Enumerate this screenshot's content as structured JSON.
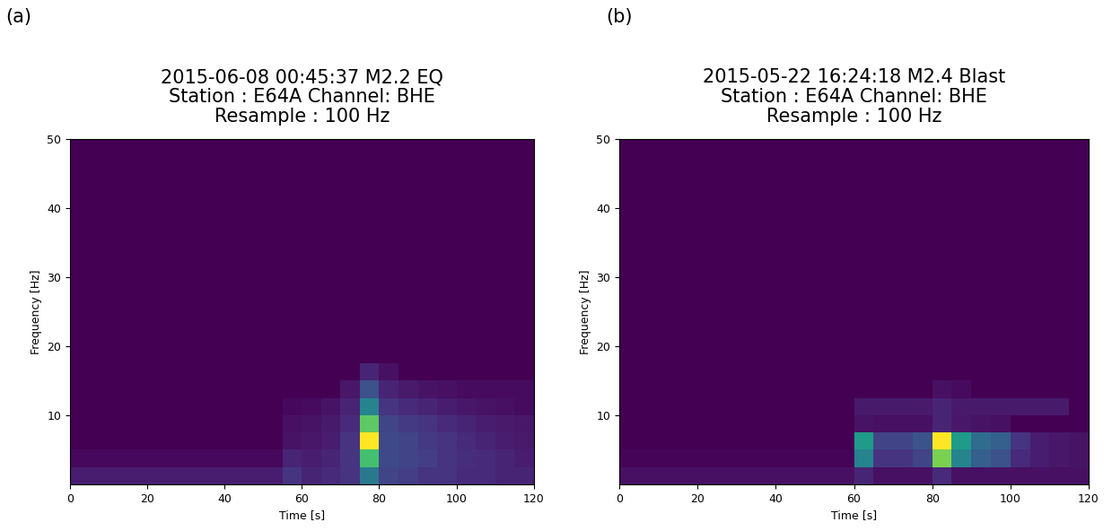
{
  "chart_data": [
    {
      "type": "heatmap",
      "label": "(a)",
      "title": "2015-06-08 00:45:37 M2.2 EQ\nStation : E64A Channel: BHE\nResample : 100 Hz",
      "x_label": "Time [s]",
      "y_label": "Frequency [Hz]",
      "xlim": [
        0,
        120
      ],
      "xticks": [
        0,
        20,
        40,
        60,
        80,
        100,
        120
      ],
      "ylim": [
        0,
        50
      ],
      "yticks": [
        10,
        20,
        30,
        40,
        50
      ],
      "color": "viridis",
      "color_range": [
        0,
        1
      ],
      "x_edges": [
        0,
        5,
        10,
        15,
        20,
        25,
        30,
        35,
        40,
        45,
        50,
        55,
        60,
        65,
        70,
        75,
        80,
        85,
        90,
        95,
        100,
        105,
        110,
        115,
        120
      ],
      "y_edges": [
        0,
        2.5,
        5,
        7.5,
        10,
        12.5,
        15,
        17.5,
        20,
        22.5,
        25,
        27.5,
        30,
        32.5,
        35,
        37.5,
        40,
        42.5,
        45,
        47.5,
        50
      ],
      "cells": [
        [
          0.08,
          0.08,
          0.08,
          0.08,
          0.08,
          0.08,
          0.08,
          0.08,
          0.08,
          0.08,
          0.08,
          0.15,
          0.1,
          0.12,
          0.15,
          0.4,
          0.2,
          0.18,
          0.15,
          0.15,
          0.12,
          0.12,
          0.1,
          0.1
        ],
        [
          0.02,
          0.02,
          0.02,
          0.02,
          0.02,
          0.02,
          0.02,
          0.02,
          0.02,
          0.02,
          0.02,
          0.1,
          0.08,
          0.1,
          0.15,
          0.7,
          0.22,
          0.2,
          0.18,
          0.15,
          0.13,
          0.12,
          0.1,
          0.08
        ],
        [
          0,
          0,
          0,
          0,
          0,
          0,
          0,
          0,
          0,
          0,
          0,
          0.05,
          0.06,
          0.08,
          0.15,
          1.0,
          0.22,
          0.2,
          0.17,
          0.15,
          0.12,
          0.1,
          0.08,
          0.07
        ],
        [
          0,
          0,
          0,
          0,
          0,
          0,
          0,
          0,
          0,
          0,
          0,
          0.04,
          0.05,
          0.07,
          0.12,
          0.75,
          0.2,
          0.17,
          0.15,
          0.12,
          0.1,
          0.08,
          0.07,
          0.06
        ],
        [
          0,
          0,
          0,
          0,
          0,
          0,
          0,
          0,
          0,
          0,
          0,
          0.02,
          0.03,
          0.05,
          0.1,
          0.45,
          0.15,
          0.12,
          0.1,
          0.08,
          0.06,
          0.05,
          0.04,
          0.03
        ],
        [
          0,
          0,
          0,
          0,
          0,
          0,
          0,
          0,
          0,
          0,
          0,
          0,
          0,
          0,
          0.06,
          0.25,
          0.1,
          0.07,
          0.05,
          0.04,
          0.03,
          0.03,
          0.03,
          0.03
        ],
        [
          0,
          0,
          0,
          0,
          0,
          0,
          0,
          0,
          0,
          0,
          0,
          0,
          0,
          0,
          0,
          0.1,
          0.04,
          0,
          0,
          0,
          0,
          0,
          0,
          0
        ],
        [
          0,
          0,
          0,
          0,
          0,
          0,
          0,
          0,
          0,
          0,
          0,
          0,
          0,
          0,
          0,
          0,
          0,
          0,
          0,
          0,
          0,
          0,
          0,
          0
        ],
        [
          0,
          0,
          0,
          0,
          0,
          0,
          0,
          0,
          0,
          0,
          0,
          0,
          0,
          0,
          0,
          0,
          0,
          0,
          0,
          0,
          0,
          0,
          0,
          0
        ],
        [
          0,
          0,
          0,
          0,
          0,
          0,
          0,
          0,
          0,
          0,
          0,
          0,
          0,
          0,
          0,
          0,
          0,
          0,
          0,
          0,
          0,
          0,
          0,
          0
        ],
        [
          0,
          0,
          0,
          0,
          0,
          0,
          0,
          0,
          0,
          0,
          0,
          0,
          0,
          0,
          0,
          0,
          0,
          0,
          0,
          0,
          0,
          0,
          0,
          0
        ],
        [
          0,
          0,
          0,
          0,
          0,
          0,
          0,
          0,
          0,
          0,
          0,
          0,
          0,
          0,
          0,
          0,
          0,
          0,
          0,
          0,
          0,
          0,
          0,
          0
        ],
        [
          0,
          0,
          0,
          0,
          0,
          0,
          0,
          0,
          0,
          0,
          0,
          0,
          0,
          0,
          0,
          0,
          0,
          0,
          0,
          0,
          0,
          0,
          0,
          0
        ],
        [
          0,
          0,
          0,
          0,
          0,
          0,
          0,
          0,
          0,
          0,
          0,
          0,
          0,
          0,
          0,
          0,
          0,
          0,
          0,
          0,
          0,
          0,
          0,
          0
        ],
        [
          0,
          0,
          0,
          0,
          0,
          0,
          0,
          0,
          0,
          0,
          0,
          0,
          0,
          0,
          0,
          0,
          0,
          0,
          0,
          0,
          0,
          0,
          0,
          0
        ],
        [
          0,
          0,
          0,
          0,
          0,
          0,
          0,
          0,
          0,
          0,
          0,
          0,
          0,
          0,
          0,
          0,
          0,
          0,
          0,
          0,
          0,
          0,
          0,
          0
        ],
        [
          0,
          0,
          0,
          0,
          0,
          0,
          0,
          0,
          0,
          0,
          0,
          0,
          0,
          0,
          0,
          0,
          0,
          0,
          0,
          0,
          0,
          0,
          0,
          0
        ],
        [
          0,
          0,
          0,
          0,
          0,
          0,
          0,
          0,
          0,
          0,
          0,
          0,
          0,
          0,
          0,
          0,
          0,
          0,
          0,
          0,
          0,
          0,
          0,
          0
        ],
        [
          0,
          0,
          0,
          0,
          0,
          0,
          0,
          0,
          0,
          0,
          0,
          0,
          0,
          0,
          0,
          0,
          0,
          0,
          0,
          0,
          0,
          0,
          0,
          0
        ],
        [
          0,
          0,
          0,
          0,
          0,
          0,
          0,
          0,
          0,
          0,
          0,
          0,
          0,
          0,
          0,
          0,
          0,
          0,
          0,
          0,
          0,
          0,
          0,
          0
        ]
      ]
    },
    {
      "type": "heatmap",
      "label": "(b)",
      "title": "2015-05-22 16:24:18 M2.4 Blast\nStation : E64A Channel: BHE\nResample : 100 Hz",
      "x_label": "Time [s]",
      "y_label": "Frequency [Hz]",
      "xlim": [
        0,
        120
      ],
      "xticks": [
        0,
        20,
        40,
        60,
        80,
        100,
        120
      ],
      "ylim": [
        0,
        50
      ],
      "yticks": [
        10,
        20,
        30,
        40,
        50
      ],
      "color": "viridis",
      "color_range": [
        0,
        1
      ],
      "x_edges": [
        0,
        5,
        10,
        15,
        20,
        25,
        30,
        35,
        40,
        45,
        50,
        55,
        60,
        65,
        70,
        75,
        80,
        85,
        90,
        95,
        100,
        105,
        110,
        115,
        120
      ],
      "y_edges": [
        0,
        2.5,
        5,
        7.5,
        10,
        12.5,
        15,
        17.5,
        20,
        22.5,
        25,
        27.5,
        30,
        32.5,
        35,
        37.5,
        40,
        42.5,
        45,
        47.5,
        50
      ],
      "cells": [
        [
          0.04,
          0.04,
          0.04,
          0.04,
          0.04,
          0.04,
          0.04,
          0.04,
          0.04,
          0.04,
          0.04,
          0.04,
          0.1,
          0.04,
          0.04,
          0.04,
          0.12,
          0.04,
          0.04,
          0.04,
          0.04,
          0.04,
          0.04,
          0.04
        ],
        [
          0.01,
          0.01,
          0.01,
          0.01,
          0.01,
          0.01,
          0.01,
          0.01,
          0.01,
          0.01,
          0.01,
          0.01,
          0.45,
          0.15,
          0.15,
          0.2,
          0.8,
          0.45,
          0.3,
          0.25,
          0.12,
          0.08,
          0.06,
          0.05
        ],
        [
          0,
          0,
          0,
          0,
          0,
          0,
          0,
          0,
          0,
          0,
          0,
          0,
          0.55,
          0.2,
          0.2,
          0.25,
          1.0,
          0.55,
          0.35,
          0.3,
          0.15,
          0.08,
          0.06,
          0.05
        ],
        [
          0,
          0,
          0,
          0,
          0,
          0,
          0,
          0,
          0,
          0,
          0,
          0,
          0.05,
          0.04,
          0.04,
          0.04,
          0.1,
          0.06,
          0.05,
          0.04,
          0,
          0,
          0,
          0
        ],
        [
          0,
          0,
          0,
          0,
          0,
          0,
          0,
          0,
          0,
          0,
          0,
          0,
          0.07,
          0.07,
          0.07,
          0.07,
          0.1,
          0.07,
          0.07,
          0.07,
          0.07,
          0.07,
          0.07,
          0
        ],
        [
          0,
          0,
          0,
          0,
          0,
          0,
          0,
          0,
          0,
          0,
          0,
          0,
          0,
          0,
          0,
          0,
          0.04,
          0.03,
          0,
          0,
          0,
          0,
          0,
          0
        ],
        [
          0,
          0,
          0,
          0,
          0,
          0,
          0,
          0,
          0,
          0,
          0,
          0,
          0,
          0,
          0,
          0,
          0,
          0,
          0,
          0,
          0,
          0,
          0,
          0
        ],
        [
          0,
          0,
          0,
          0,
          0,
          0,
          0,
          0,
          0,
          0,
          0,
          0,
          0,
          0,
          0,
          0,
          0,
          0,
          0,
          0,
          0,
          0,
          0,
          0
        ],
        [
          0,
          0,
          0,
          0,
          0,
          0,
          0,
          0,
          0,
          0,
          0,
          0,
          0,
          0,
          0,
          0,
          0,
          0,
          0,
          0,
          0,
          0,
          0,
          0
        ],
        [
          0,
          0,
          0,
          0,
          0,
          0,
          0,
          0,
          0,
          0,
          0,
          0,
          0,
          0,
          0,
          0,
          0,
          0,
          0,
          0,
          0,
          0,
          0,
          0
        ],
        [
          0,
          0,
          0,
          0,
          0,
          0,
          0,
          0,
          0,
          0,
          0,
          0,
          0,
          0,
          0,
          0,
          0,
          0,
          0,
          0,
          0,
          0,
          0,
          0
        ],
        [
          0,
          0,
          0,
          0,
          0,
          0,
          0,
          0,
          0,
          0,
          0,
          0,
          0,
          0,
          0,
          0,
          0,
          0,
          0,
          0,
          0,
          0,
          0,
          0
        ],
        [
          0,
          0,
          0,
          0,
          0,
          0,
          0,
          0,
          0,
          0,
          0,
          0,
          0,
          0,
          0,
          0,
          0,
          0,
          0,
          0,
          0,
          0,
          0,
          0
        ],
        [
          0,
          0,
          0,
          0,
          0,
          0,
          0,
          0,
          0,
          0,
          0,
          0,
          0,
          0,
          0,
          0,
          0,
          0,
          0,
          0,
          0,
          0,
          0,
          0
        ],
        [
          0,
          0,
          0,
          0,
          0,
          0,
          0,
          0,
          0,
          0,
          0,
          0,
          0,
          0,
          0,
          0,
          0,
          0,
          0,
          0,
          0,
          0,
          0,
          0
        ],
        [
          0,
          0,
          0,
          0,
          0,
          0,
          0,
          0,
          0,
          0,
          0,
          0,
          0,
          0,
          0,
          0,
          0,
          0,
          0,
          0,
          0,
          0,
          0,
          0
        ],
        [
          0,
          0,
          0,
          0,
          0,
          0,
          0,
          0,
          0,
          0,
          0,
          0,
          0,
          0,
          0,
          0,
          0,
          0,
          0,
          0,
          0,
          0,
          0,
          0
        ],
        [
          0,
          0,
          0,
          0,
          0,
          0,
          0,
          0,
          0,
          0,
          0,
          0,
          0,
          0,
          0,
          0,
          0,
          0,
          0,
          0,
          0,
          0,
          0,
          0
        ],
        [
          0,
          0,
          0,
          0,
          0,
          0,
          0,
          0,
          0,
          0,
          0,
          0,
          0,
          0,
          0,
          0,
          0,
          0,
          0,
          0,
          0,
          0,
          0,
          0
        ],
        [
          0,
          0,
          0,
          0,
          0,
          0,
          0,
          0,
          0,
          0,
          0,
          0,
          0,
          0,
          0,
          0,
          0,
          0,
          0,
          0,
          0,
          0,
          0,
          0
        ]
      ]
    }
  ]
}
